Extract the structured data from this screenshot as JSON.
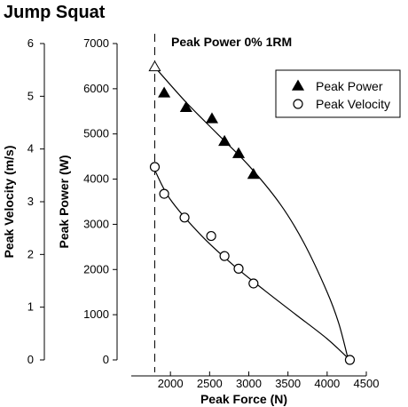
{
  "chart_data": {
    "type": "scatter",
    "title": "Jump Squat",
    "subtitle": "Peak Power 0% 1RM",
    "xlabel": "Peak Force (N)",
    "ylabel_left": "Peak Velocity (m/s)",
    "ylabel_right": "Peak Power (W)",
    "xlim": [
      1500,
      4500
    ],
    "x_ticks": [
      2000,
      2500,
      3000,
      3500,
      4000,
      4500
    ],
    "power_ylim": [
      0,
      7000
    ],
    "power_ticks": [
      0,
      1000,
      2000,
      3000,
      4000,
      5000,
      6000,
      7000
    ],
    "velocity_ylim": [
      0,
      6
    ],
    "velocity_ticks": [
      0,
      1,
      2,
      3,
      4,
      5,
      6
    ],
    "reference_line": {
      "x": 1800,
      "style": "dashed"
    },
    "legend": {
      "position": "top-right"
    },
    "series": [
      {
        "name": "Peak Power",
        "marker": "filled-triangle",
        "axis": "power",
        "points": [
          {
            "x": 1800,
            "y": 6480,
            "marker": "open-triangle"
          },
          {
            "x": 1920,
            "y": 5900
          },
          {
            "x": 2200,
            "y": 5580
          },
          {
            "x": 2530,
            "y": 5330
          },
          {
            "x": 2690,
            "y": 4830
          },
          {
            "x": 2870,
            "y": 4560
          },
          {
            "x": 3060,
            "y": 4100
          }
        ],
        "fit_curve": [
          [
            1800,
            6480
          ],
          [
            2200,
            5700
          ],
          [
            2600,
            5000
          ],
          [
            3000,
            4300
          ],
          [
            3400,
            3450
          ],
          [
            3700,
            2600
          ],
          [
            4000,
            1500
          ],
          [
            4150,
            800
          ],
          [
            4270,
            0
          ]
        ]
      },
      {
        "name": "Peak Velocity",
        "marker": "open-circle",
        "axis": "velocity",
        "points": [
          {
            "x": 1800,
            "y": 3.66
          },
          {
            "x": 1920,
            "y": 3.15
          },
          {
            "x": 2180,
            "y": 2.7
          },
          {
            "x": 2520,
            "y": 2.35
          },
          {
            "x": 2690,
            "y": 1.97
          },
          {
            "x": 2870,
            "y": 1.73
          },
          {
            "x": 3060,
            "y": 1.45
          },
          {
            "x": 4290,
            "y": 0
          }
        ],
        "fit_curve": [
          [
            1800,
            3.6
          ],
          [
            2000,
            3.04
          ],
          [
            2400,
            2.35
          ],
          [
            2800,
            1.8
          ],
          [
            3200,
            1.32
          ],
          [
            3600,
            0.86
          ],
          [
            4000,
            0.4
          ],
          [
            4290,
            0
          ]
        ]
      }
    ]
  }
}
